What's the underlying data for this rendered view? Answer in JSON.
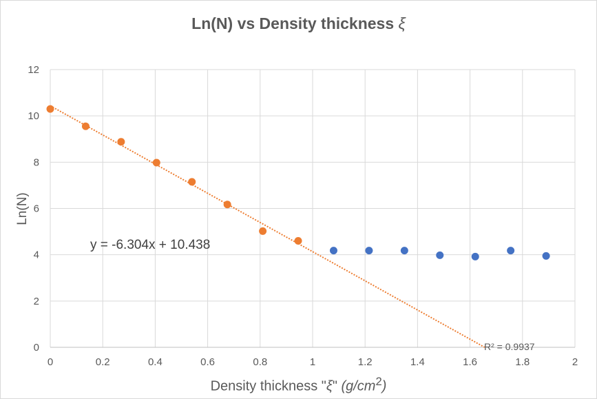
{
  "chart_data": {
    "type": "scatter",
    "title_prefix": "Ln(N) vs Density thickness ",
    "title_symbol": "ξ",
    "ylabel": "Ln(N)",
    "xlabel": {
      "prefix": "Density thickness \"",
      "symbol": "ξ",
      "mid": "\" ",
      "unit": "(g/cm",
      "sup": "2",
      "close": ")"
    },
    "xlim": [
      0,
      2
    ],
    "ylim": [
      0,
      12
    ],
    "x_ticks": [
      "0",
      "0.2",
      "0.4",
      "0.6",
      "0.8",
      "1",
      "1.2",
      "1.4",
      "1.6",
      "1.8",
      "2"
    ],
    "y_ticks": [
      "0",
      "2",
      "4",
      "6",
      "8",
      "10",
      "12"
    ],
    "grid": true,
    "series": [
      {
        "color": "#ed7d31",
        "points": [
          [
            0,
            10.3
          ],
          [
            0.135,
            9.55
          ],
          [
            0.27,
            8.88
          ],
          [
            0.405,
            7.98
          ],
          [
            0.54,
            7.15
          ],
          [
            0.675,
            6.17
          ],
          [
            0.81,
            5.02
          ],
          [
            0.945,
            4.6
          ]
        ]
      },
      {
        "color": "#4472c4",
        "points": [
          [
            1.08,
            4.18
          ],
          [
            1.215,
            4.18
          ],
          [
            1.35,
            4.18
          ],
          [
            1.485,
            3.98
          ],
          [
            1.62,
            3.92
          ],
          [
            1.755,
            4.18
          ],
          [
            1.89,
            3.95
          ]
        ]
      }
    ],
    "trendline": {
      "slope": -6.304,
      "intercept": 10.438,
      "color": "#ed7d31",
      "equation": "y = -6.304x + 10.438",
      "r2": "R² = 0.9937"
    }
  }
}
